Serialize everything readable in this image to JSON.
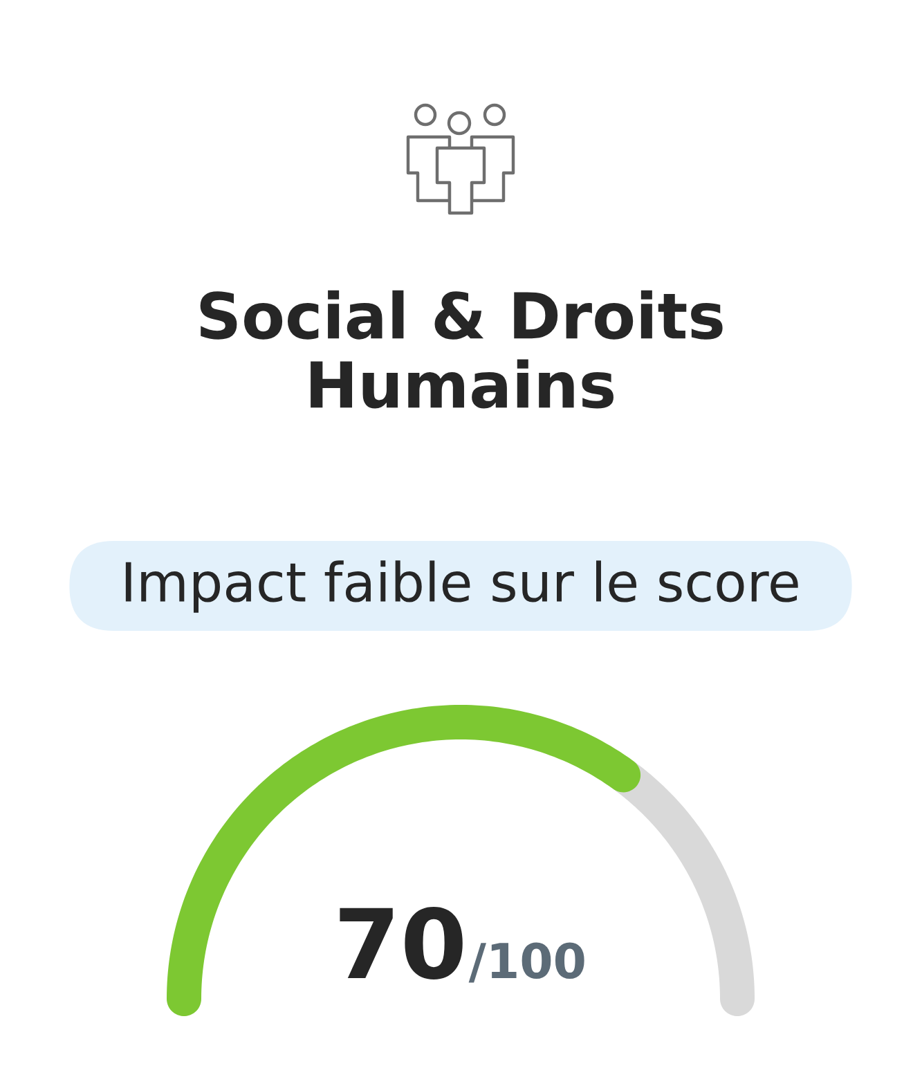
{
  "chart_data": {
    "type": "donut",
    "title": "Social & Droits\nHumains",
    "subtitle": "Impact faible sur le score",
    "categories": [
      null,
      null
    ],
    "values": [
      70,
      30
    ],
    "colors": [
      "#7dc832",
      "#d9d9d9"
    ],
    "annotations": [
      "70",
      "/100"
    ]
  }
}
